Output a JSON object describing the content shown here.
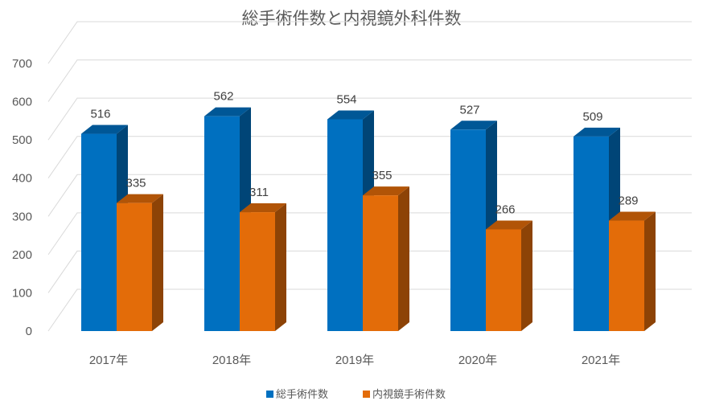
{
  "chart_data": {
    "type": "bar",
    "title": "総手術件数と内視鏡外科件数",
    "categories": [
      "2017年",
      "2018年",
      "2019年",
      "2020年",
      "2021年"
    ],
    "series": [
      {
        "name": "総手術件数",
        "values": [
          516,
          562,
          554,
          527,
          509
        ],
        "color": "#0070C0"
      },
      {
        "name": "内視鏡手術件数",
        "values": [
          335,
          311,
          355,
          266,
          289
        ],
        "color": "#E36C09"
      }
    ],
    "ylim": [
      0,
      700
    ],
    "yticks": [
      "0",
      "100",
      "200",
      "300",
      "400",
      "500",
      "600",
      "700"
    ],
    "grid": true,
    "legend": "bottom",
    "style": "3d-clustered-column"
  }
}
